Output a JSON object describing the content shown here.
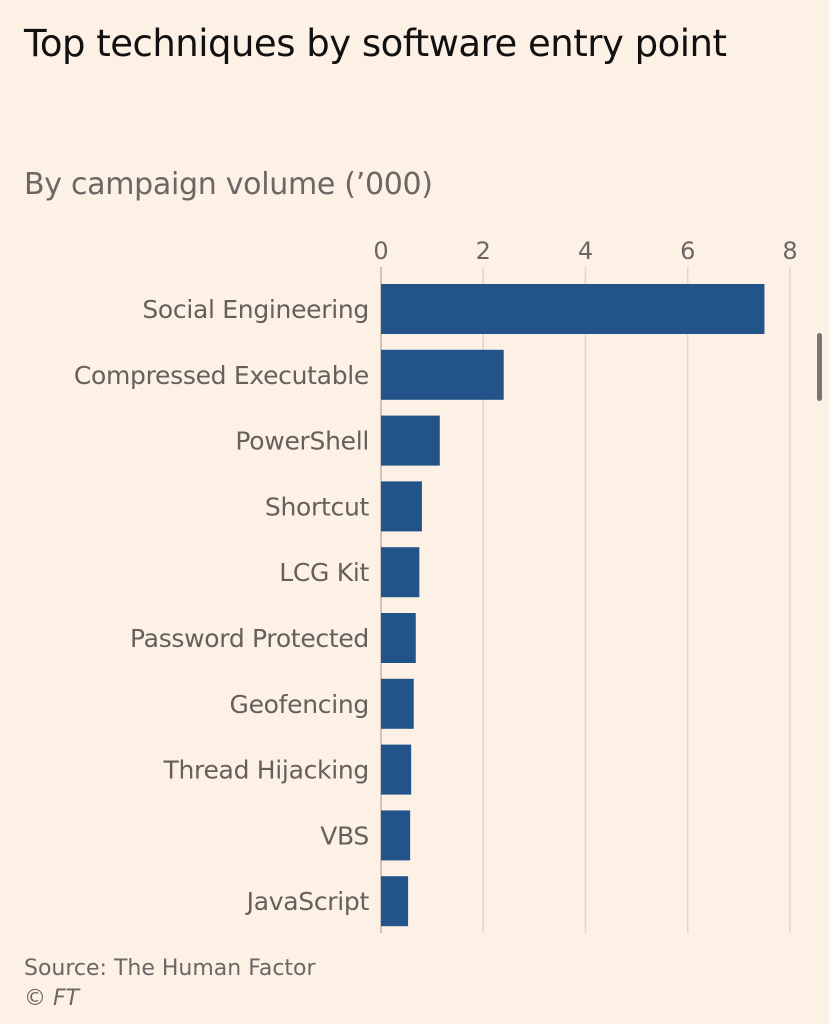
{
  "header": {
    "title": "Top techniques by software entry point",
    "subtitle": "By campaign volume (’000)"
  },
  "footer": {
    "source": "Source: The Human Factor",
    "copyright_symbol": "©",
    "copyright_owner": "FT"
  },
  "colors": {
    "background": "#fdf0e5",
    "bar": "#225389",
    "grid": "#e2d6cc",
    "text": "#66605c"
  },
  "chart_data": {
    "type": "bar",
    "orientation": "horizontal",
    "title": "Top techniques by software entry point",
    "subtitle": "By campaign volume ('000)",
    "xlabel": "",
    "ylabel": "",
    "xlim": [
      0,
      8
    ],
    "x_ticks": [
      0,
      2,
      4,
      6,
      8
    ],
    "x_axis_position": "top",
    "grid": true,
    "categories": [
      "Social Engineering",
      "Compressed Executable",
      "PowerShell",
      "Shortcut",
      "LCG Kit",
      "Password Protected",
      "Geofencing",
      "Thread Hijacking",
      "VBS",
      "JavaScript"
    ],
    "values": [
      7.5,
      2.4,
      1.15,
      0.8,
      0.75,
      0.68,
      0.64,
      0.59,
      0.57,
      0.53
    ],
    "source": "Source: The Human Factor"
  }
}
